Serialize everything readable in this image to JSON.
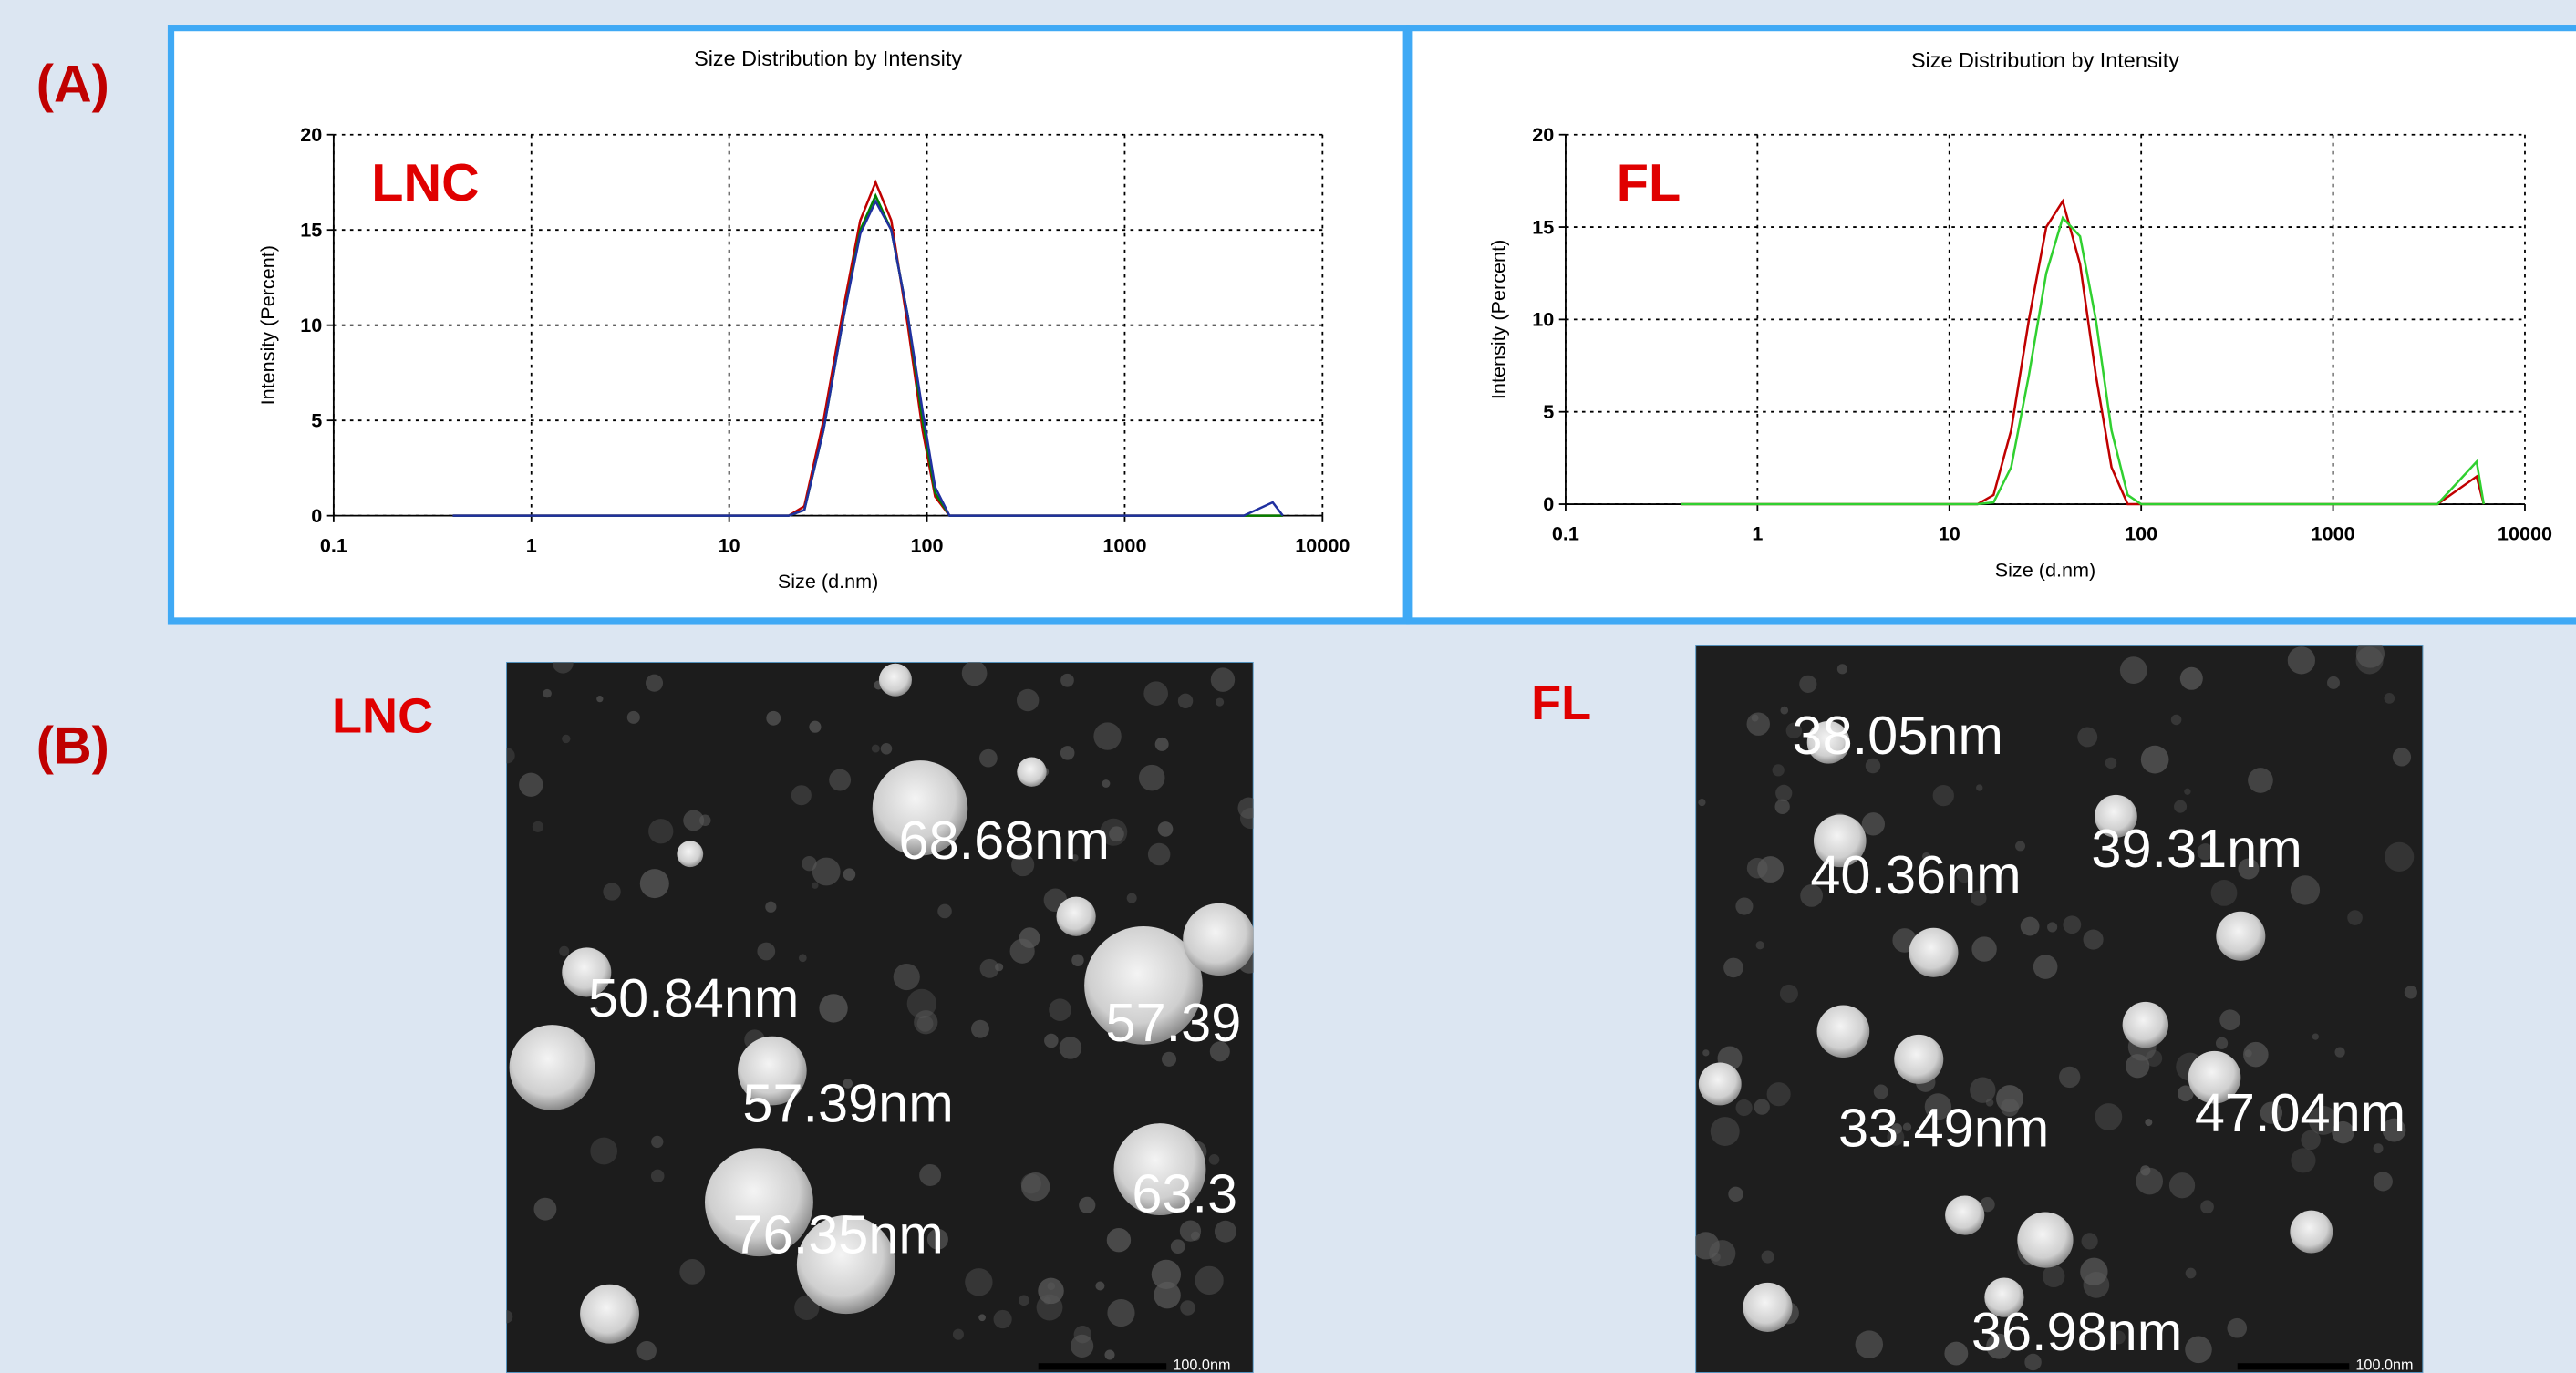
{
  "panel_labels": [
    "(A)",
    "(B)"
  ],
  "chart_data": [
    {
      "type": "line",
      "title": "Size Distribution by Intensity",
      "x_label": "Size (d.nm)",
      "y_label": "Intensity (Percent)",
      "annotation": "LNC",
      "log_x": true,
      "grid": true,
      "x": [
        0.4,
        20,
        24,
        30,
        38,
        46,
        55,
        66,
        80,
        95,
        110,
        130,
        4000,
        5600,
        6300
      ],
      "series": [
        {
          "color": "#c00000",
          "values": [
            0,
            0,
            0.5,
            5,
            11,
            15.5,
            17.5,
            15.5,
            10,
            4.5,
            1,
            0,
            0,
            0,
            0
          ]
        },
        {
          "color": "#008000",
          "values": [
            0,
            0,
            0.3,
            4.5,
            10.5,
            15,
            16.8,
            15,
            10.5,
            5,
            1.2,
            0,
            0,
            0,
            0
          ]
        },
        {
          "color": "#2030a0",
          "values": [
            0,
            0,
            0.3,
            4.5,
            10.5,
            14.8,
            16.5,
            15,
            10.5,
            5.5,
            1.5,
            0,
            0,
            0.7,
            0
          ]
        }
      ],
      "xlim": [
        0.1,
        10000
      ],
      "xticks": [
        0.1,
        1,
        10,
        100,
        1000,
        10000
      ],
      "ylim": [
        0,
        20
      ],
      "yticks": [
        0,
        5,
        10,
        15,
        20
      ]
    },
    {
      "type": "line",
      "title": "Size Distribution by Intensity",
      "x_label": "Size (d.nm)",
      "y_label": "Intensity (Percent)",
      "annotation": "FL",
      "log_x": true,
      "grid": true,
      "x": [
        0.4,
        14,
        17,
        21,
        26,
        32,
        39,
        48,
        58,
        70,
        85,
        100,
        3500,
        5600,
        6100
      ],
      "series": [
        {
          "color": "#c00000",
          "values": [
            0,
            0,
            0.5,
            4,
            10,
            15,
            16.4,
            13,
            7,
            2,
            0,
            0,
            0,
            1.5,
            0
          ]
        },
        {
          "color": "#30d030",
          "values": [
            0,
            0,
            0.1,
            2,
            7,
            12.5,
            15.5,
            14.5,
            10,
            4,
            0.5,
            0,
            0,
            2.3,
            0
          ]
        }
      ],
      "xlim": [
        0.1,
        10000
      ],
      "xticks": [
        0.1,
        1,
        10,
        100,
        1000,
        10000
      ],
      "ylim": [
        0,
        20
      ],
      "yticks": [
        0,
        5,
        10,
        15,
        20
      ]
    }
  ],
  "tem": [
    {
      "label": "LNC",
      "scale_bar": "100.0nm",
      "annotations": [
        "68.68nm",
        "50.84nm",
        "57.39",
        "57.39nm",
        "63.3",
        "76.35nm"
      ]
    },
    {
      "label": "FL",
      "scale_bar": "100.0nm",
      "annotations": [
        "38.05nm",
        "40.36nm",
        "39.31nm",
        "33.49nm",
        "47.04nm",
        "36.98nm"
      ]
    }
  ]
}
